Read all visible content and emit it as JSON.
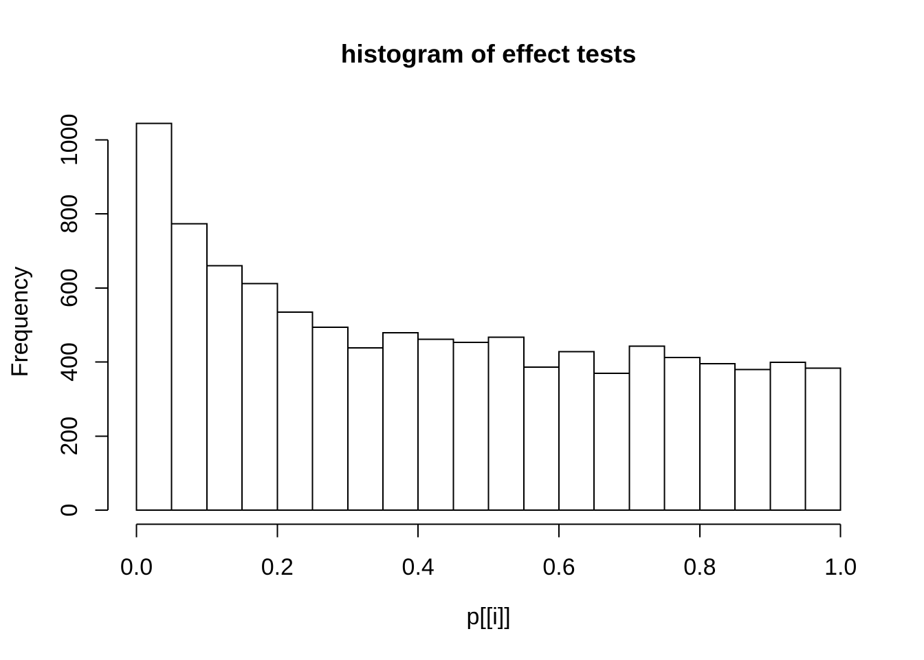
{
  "chart_data": {
    "type": "bar",
    "subtype": "histogram",
    "title": "histogram of effect tests",
    "xlabel": "p[[i]]",
    "ylabel": "Frequency",
    "bin_start": 0.0,
    "bin_width": 0.05,
    "n_bins": 20,
    "values": [
      1044,
      773,
      660,
      612,
      535,
      494,
      438,
      479,
      461,
      453,
      467,
      386,
      428,
      369,
      443,
      412,
      395,
      380,
      399,
      383
    ],
    "x_tick_values": [
      0.0,
      0.2,
      0.4,
      0.6,
      0.8,
      1.0
    ],
    "x_tick_labels": [
      "0.0",
      "0.2",
      "0.4",
      "0.6",
      "0.8",
      "1.0"
    ],
    "y_tick_values": [
      0,
      200,
      400,
      600,
      800,
      1000
    ],
    "y_tick_labels": [
      "0",
      "200",
      "400",
      "600",
      "800",
      "1000"
    ],
    "xlim": [
      0.0,
      1.0
    ],
    "ylim": [
      0,
      1000
    ],
    "grid": false,
    "legend": "none",
    "bar_fill": "#ffffff",
    "bar_stroke": "#000000",
    "axis_color": "#000000",
    "text_color": "#000000",
    "background": "#ffffff"
  }
}
